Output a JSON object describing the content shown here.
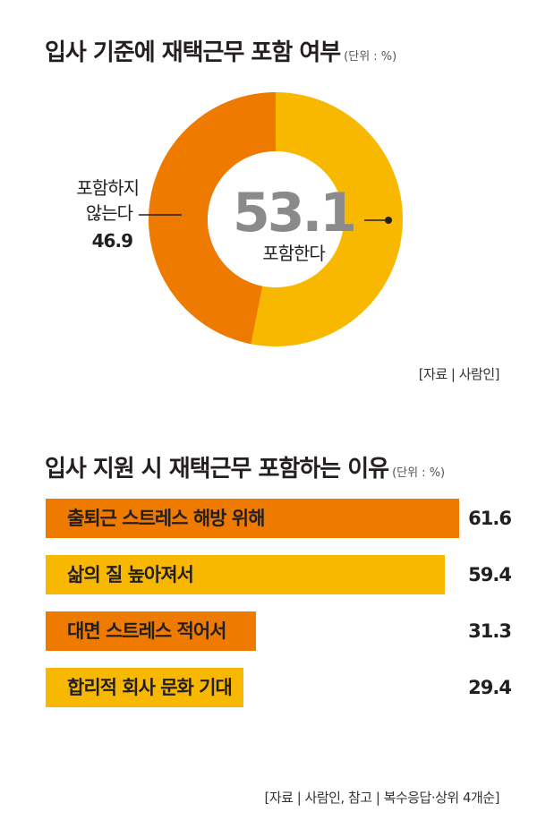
{
  "chart_data": [
    {
      "type": "pie",
      "title": "입사 기준에 재택근무 포함 여부",
      "unit": "(단위 : %)",
      "slices": [
        {
          "label": "포함한다",
          "value": 53.1,
          "value_text": "53.1",
          "color": "#f9b800"
        },
        {
          "label_lines": [
            "포함하지",
            "않는다"
          ],
          "value": 46.9,
          "value_text": "46.9",
          "color": "#ee7a00"
        }
      ],
      "source": "[자료 | 사람인]"
    },
    {
      "type": "bar",
      "orientation": "horizontal",
      "title": "입사 지원 시 재택근무 포함하는 이유",
      "unit": "(단위 : %)",
      "categories": [
        "출퇴근 스트레스 해방 위해",
        "삶의 질 높아져서",
        "대면 스트레스 적어서",
        "합리적 회사 문화 기대"
      ],
      "values": [
        61.6,
        59.4,
        31.3,
        29.4
      ],
      "value_texts": [
        "61.6",
        "59.4",
        "31.3",
        "29.4"
      ],
      "colors": [
        "#ee7a00",
        "#f9b800",
        "#ee7a00",
        "#f9b800"
      ],
      "xlim": [
        0,
        61.6
      ],
      "source": "[자료 | 사람인, 참고 | 복수응답·상위 4개순]"
    }
  ]
}
